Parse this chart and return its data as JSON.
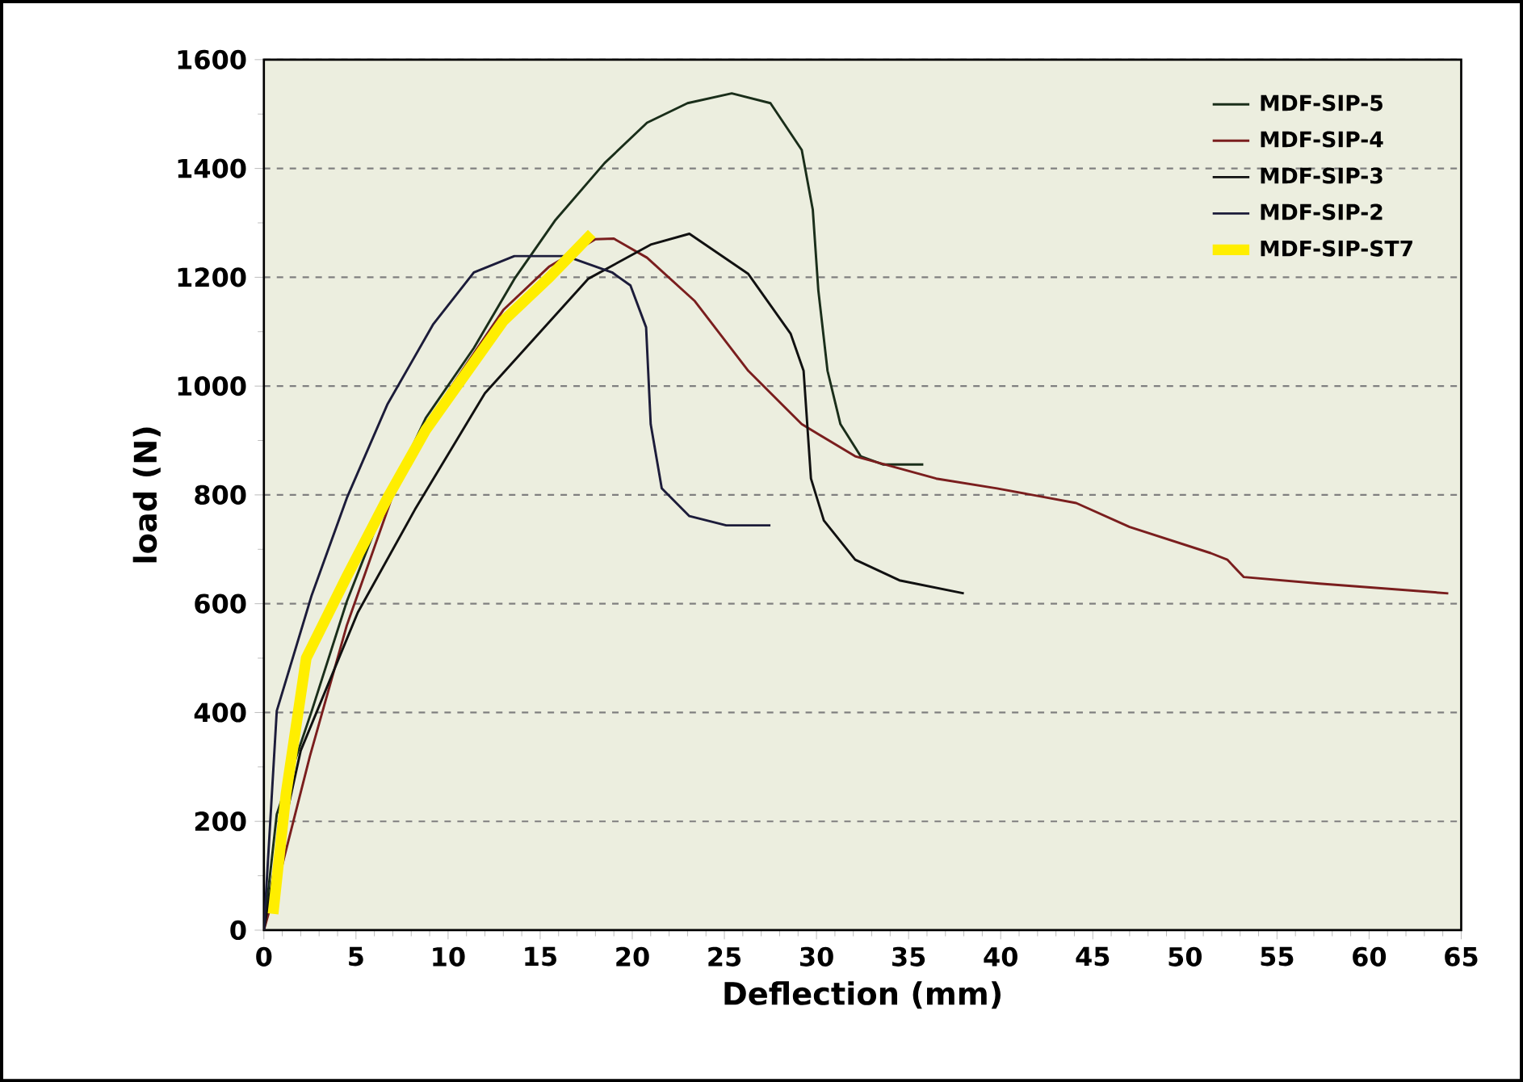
{
  "chart_data": {
    "type": "line",
    "xlabel": "Deflection (mm)",
    "ylabel": "load (N)",
    "xlim": [
      0,
      65
    ],
    "ylim": [
      0,
      1600
    ],
    "xticks": [
      0,
      5,
      10,
      15,
      20,
      25,
      30,
      35,
      40,
      45,
      50,
      55,
      60,
      65
    ],
    "yticks": [
      0,
      200,
      400,
      600,
      800,
      1000,
      1200,
      1400,
      1600
    ],
    "grid": "y",
    "legend": "top right",
    "marker": "none",
    "line_style": "solid",
    "series": [
      {
        "name": "MDF-SIP-5",
        "color": "#1a2e1a",
        "x": [
          0,
          0.7,
          2.6,
          4.5,
          6.6,
          8.8,
          11.4,
          13.6,
          15.8,
          18.5,
          20.8,
          23,
          25.4,
          27.5,
          29.2,
          29.8,
          30.1,
          30.6,
          31.3,
          32.4,
          33.6,
          35.8
        ],
        "values": [
          0,
          213,
          403,
          604,
          785,
          942,
          1070,
          1197,
          1304,
          1410,
          1484,
          1520,
          1538,
          1520,
          1434,
          1324,
          1176,
          1028,
          930,
          871,
          856,
          856
        ]
      },
      {
        "name": "MDF-SIP-4",
        "color": "#7a1e1e",
        "x": [
          0,
          1,
          2.5,
          4.5,
          7,
          10,
          13,
          15.5,
          18,
          19,
          20.8,
          23.4,
          26.3,
          29.2,
          32.1,
          36.5,
          39.8,
          44.1,
          47,
          51.4,
          52.3,
          53.2,
          57.3,
          64.3
        ],
        "values": [
          0,
          120,
          320,
          560,
          800,
          990,
          1140,
          1220,
          1270,
          1271,
          1236,
          1156,
          1028,
          930,
          871,
          830,
          812,
          785,
          741,
          693,
          681,
          649,
          637,
          619
        ]
      },
      {
        "name": "MDF-SIP-3",
        "color": "#111111",
        "x": [
          0,
          0.5,
          2,
          5.1,
          8.2,
          12,
          17.6,
          21,
          23.1,
          26.3,
          28.6,
          29.3,
          29.7,
          30.4,
          32.1,
          34.5,
          38
        ],
        "values": [
          0,
          100,
          330,
          584,
          773,
          987,
          1197,
          1260,
          1280,
          1206,
          1096,
          1028,
          830,
          753,
          681,
          643,
          619
        ]
      },
      {
        "name": "MDF-SIP-2",
        "color": "#1c1c3a",
        "x": [
          0,
          0.7,
          2.6,
          4.5,
          6.7,
          9.2,
          11.4,
          13.6,
          16.4,
          18.9,
          19.9,
          20.75,
          21,
          21.6,
          23.1,
          25.1,
          27.5
        ],
        "values": [
          0,
          403,
          616,
          794,
          966,
          1114,
          1209,
          1239,
          1239,
          1209,
          1185,
          1108,
          930,
          812,
          761,
          744,
          744
        ]
      },
      {
        "name": "MDF-SIP-ST7",
        "color": "#ffee00",
        "x": [
          0.5,
          1.2,
          2.3,
          4.5,
          6.8,
          8.8,
          13,
          15.5,
          17.8
        ],
        "values": [
          30,
          250,
          500,
          650,
          800,
          920,
          1120,
          1200,
          1280
        ]
      }
    ]
  }
}
